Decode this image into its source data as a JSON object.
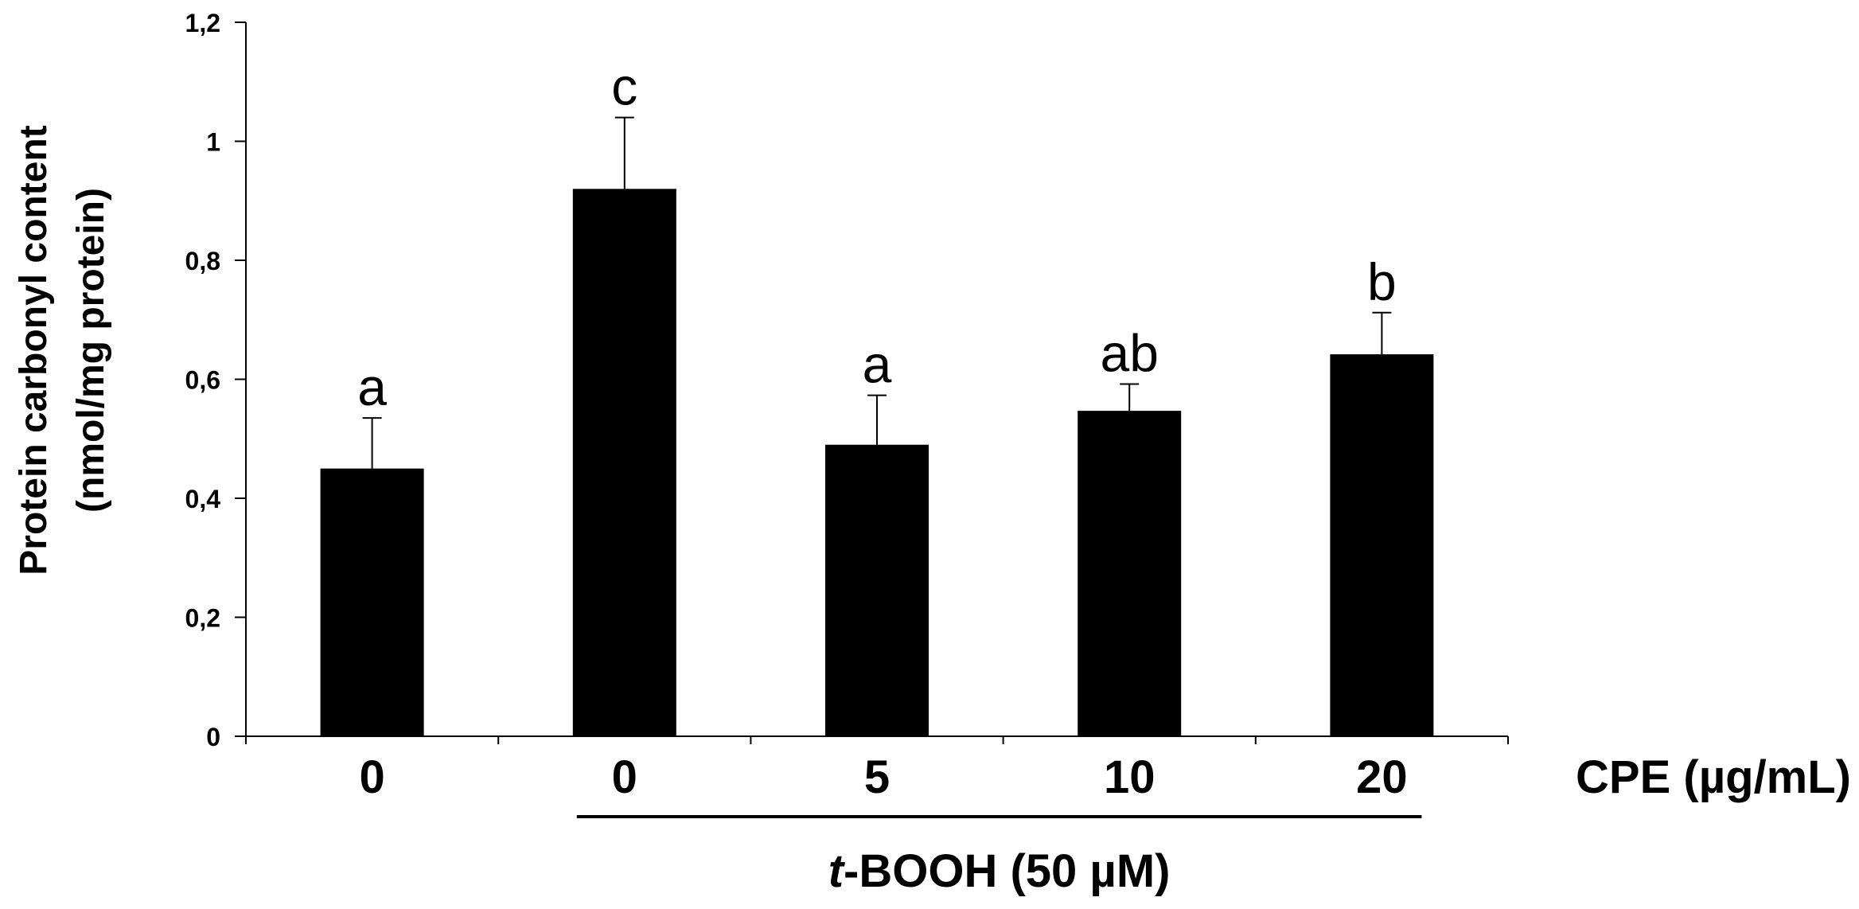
{
  "chart_data": {
    "type": "bar",
    "ylabel_line1": "Protein carbonyl content",
    "ylabel_line2": "(nmol/mg protein)",
    "xlabel": "CPE (µg/mL)",
    "group_label_prefix": "t",
    "group_label_suffix": "-BOOH (50 µM)",
    "categories": [
      "0",
      "0",
      "5",
      "10",
      "20"
    ],
    "values": [
      0.45,
      0.92,
      0.49,
      0.547,
      0.642
    ],
    "errors": [
      0.085,
      0.12,
      0.083,
      0.045,
      0.07
    ],
    "significance_letters": [
      "a",
      "c",
      "a",
      "ab",
      "b"
    ],
    "ylim": [
      0,
      1.2
    ],
    "yticks": [
      0,
      0.2,
      0.4,
      0.6,
      0.8,
      1,
      1.2
    ],
    "ytick_labels": [
      "0",
      "0,2",
      "0,4",
      "0,6",
      "0,8",
      "1",
      "1,2"
    ],
    "grid": false,
    "bar_color": "#000000",
    "treated_group_start_index": 1,
    "treated_group_end_index": 4
  }
}
